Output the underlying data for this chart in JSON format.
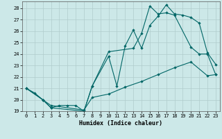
{
  "xlabel": "Humidex (Indice chaleur)",
  "bg_color": "#cce8e8",
  "grid_color": "#b0cccc",
  "line_color": "#006666",
  "xlim": [
    -0.5,
    23.5
  ],
  "ylim": [
    19,
    28.6
  ],
  "yticks": [
    19,
    20,
    21,
    22,
    23,
    24,
    25,
    26,
    27,
    28
  ],
  "xticks": [
    0,
    1,
    2,
    3,
    4,
    5,
    6,
    7,
    8,
    9,
    10,
    11,
    12,
    13,
    14,
    15,
    16,
    17,
    18,
    19,
    20,
    21,
    22,
    23
  ],
  "line1_x": [
    0,
    1,
    2,
    3,
    4,
    5,
    6,
    7,
    8,
    10,
    11,
    12,
    13,
    14,
    15,
    16,
    17,
    18,
    19,
    20,
    21,
    22,
    23
  ],
  "line1_y": [
    21.0,
    20.6,
    20.0,
    19.3,
    19.5,
    19.5,
    19.5,
    19.0,
    21.2,
    23.8,
    21.2,
    24.7,
    26.1,
    24.5,
    26.5,
    27.3,
    28.3,
    27.5,
    27.4,
    27.2,
    26.7,
    24.1,
    23.1
  ],
  "line2_x": [
    0,
    2,
    3,
    7,
    8,
    10,
    13,
    14,
    15,
    16,
    17,
    18,
    20,
    21,
    22,
    23
  ],
  "line2_y": [
    21.0,
    20.0,
    19.3,
    19.0,
    21.2,
    24.2,
    24.5,
    25.8,
    28.2,
    27.5,
    27.6,
    27.4,
    24.6,
    24.0,
    24.0,
    22.2
  ],
  "line3_x": [
    0,
    2,
    3,
    7,
    8,
    10,
    12,
    14,
    16,
    18,
    20,
    22,
    23
  ],
  "line3_y": [
    21.0,
    20.0,
    19.5,
    19.1,
    20.2,
    20.5,
    21.1,
    21.6,
    22.2,
    22.8,
    23.3,
    22.1,
    22.2
  ]
}
